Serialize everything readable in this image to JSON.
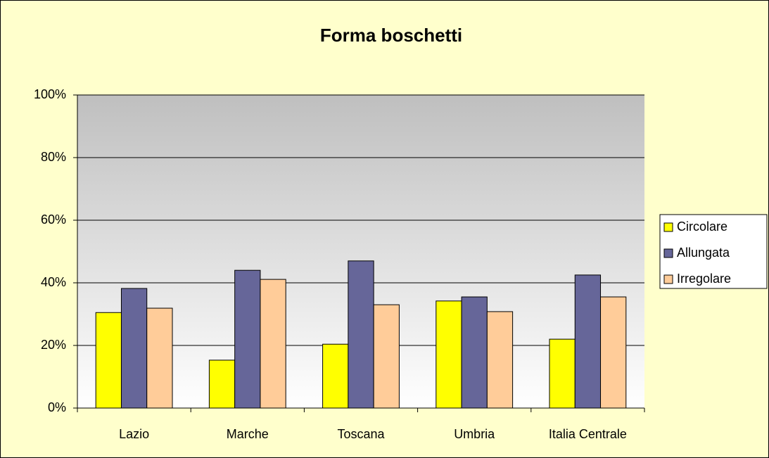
{
  "chart_data": {
    "type": "bar",
    "title": "Forma boschetti",
    "categories": [
      "Lazio",
      "Marche",
      "Toscana",
      "Umbria",
      "Italia Centrale"
    ],
    "series": [
      {
        "name": "Circolare",
        "color": "#ffff00",
        "values": [
          30.5,
          15.3,
          20.4,
          34.2,
          22
        ]
      },
      {
        "name": "Allungata",
        "color": "#666699",
        "values": [
          38.2,
          44,
          47,
          35.5,
          42.5
        ]
      },
      {
        "name": "Irregolare",
        "color": "#ffcc99",
        "values": [
          31.9,
          41.1,
          33,
          30.8,
          35.5
        ]
      }
    ],
    "ylim": [
      0,
      100
    ],
    "yticks": [
      {
        "value": 0,
        "label": "0%"
      },
      {
        "value": 20,
        "label": "20%"
      },
      {
        "value": 40,
        "label": "40%"
      },
      {
        "value": 60,
        "label": "60%"
      },
      {
        "value": 80,
        "label": "80%"
      },
      {
        "value": 100,
        "label": "100%"
      }
    ],
    "grid": true,
    "legend": "right"
  }
}
